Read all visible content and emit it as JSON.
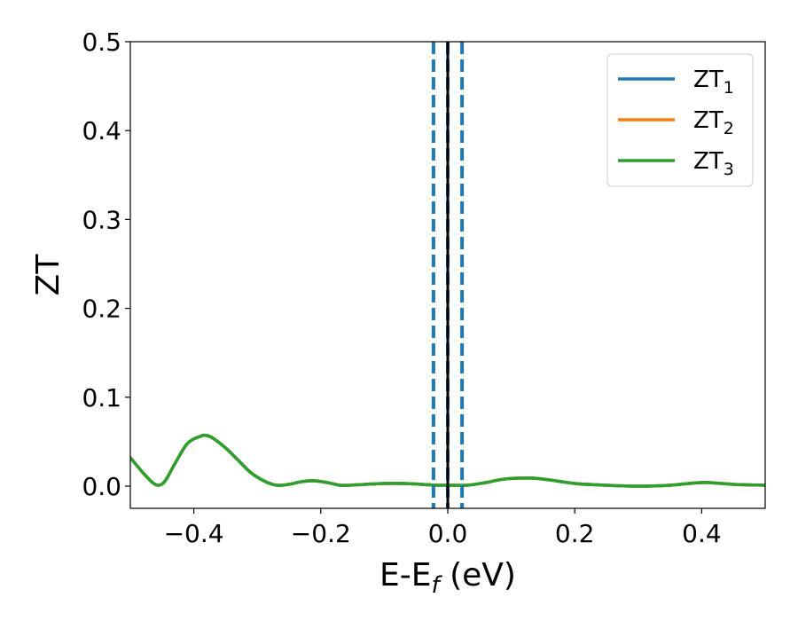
{
  "chart_data": {
    "type": "line",
    "xlabel": "E-E",
    "xlabel_sub": "f",
    "xlabel_unit": " (eV)",
    "ylabel": "ZT",
    "xlim": [
      -0.5,
      0.5
    ],
    "ylim": [
      -0.025,
      0.5
    ],
    "x_ticks": [
      -0.4,
      -0.2,
      0.0,
      0.2,
      0.4
    ],
    "x_tick_labels": [
      "−0.4",
      "−0.2",
      "0.0",
      "0.2",
      "0.4"
    ],
    "y_ticks": [
      0.0,
      0.1,
      0.2,
      0.3,
      0.4,
      0.5
    ],
    "y_tick_labels": [
      "0.0",
      "0.1",
      "0.2",
      "0.3",
      "0.4",
      "0.5"
    ],
    "grid": false,
    "legend_position": "top-right",
    "series": [
      {
        "name": "ZT",
        "sub": "1",
        "color": "#1f77b4",
        "x": [
          -0.5,
          -0.48,
          -0.465,
          -0.455,
          -0.445,
          -0.43,
          -0.41,
          -0.39,
          -0.38,
          -0.37,
          -0.35,
          -0.33,
          -0.31,
          -0.29,
          -0.27,
          -0.25,
          -0.23,
          -0.21,
          -0.19,
          -0.17,
          -0.155,
          -0.13,
          -0.1,
          -0.07,
          -0.04,
          -0.02,
          0.0,
          0.03,
          0.06,
          0.09,
          0.13,
          0.16,
          0.2,
          0.25,
          0.3,
          0.35,
          0.38,
          0.41,
          0.45,
          0.5
        ],
        "y": [
          0.032,
          0.015,
          0.004,
          0.001,
          0.006,
          0.025,
          0.048,
          0.056,
          0.057,
          0.054,
          0.043,
          0.029,
          0.015,
          0.006,
          0.001,
          0.002,
          0.005,
          0.006,
          0.004,
          0.001,
          0.001,
          0.002,
          0.003,
          0.003,
          0.002,
          0.001,
          0.001,
          0.001,
          0.004,
          0.008,
          0.009,
          0.007,
          0.003,
          0.001,
          0.0,
          0.001,
          0.003,
          0.004,
          0.002,
          0.001
        ]
      },
      {
        "name": "ZT",
        "sub": "2",
        "color": "#ff7f0e",
        "x": [
          -0.5,
          -0.48,
          -0.465,
          -0.455,
          -0.445,
          -0.43,
          -0.41,
          -0.39,
          -0.38,
          -0.37,
          -0.35,
          -0.33,
          -0.31,
          -0.29,
          -0.27,
          -0.25,
          -0.23,
          -0.21,
          -0.19,
          -0.17,
          -0.155,
          -0.13,
          -0.1,
          -0.07,
          -0.04,
          -0.02,
          0.0,
          0.03,
          0.06,
          0.09,
          0.13,
          0.16,
          0.2,
          0.25,
          0.3,
          0.35,
          0.38,
          0.41,
          0.45,
          0.5
        ],
        "y": [
          0.032,
          0.015,
          0.004,
          0.001,
          0.006,
          0.025,
          0.048,
          0.056,
          0.057,
          0.054,
          0.043,
          0.029,
          0.015,
          0.006,
          0.001,
          0.002,
          0.005,
          0.006,
          0.004,
          0.001,
          0.001,
          0.002,
          0.003,
          0.003,
          0.002,
          0.001,
          0.001,
          0.001,
          0.004,
          0.008,
          0.009,
          0.007,
          0.003,
          0.001,
          0.0,
          0.001,
          0.003,
          0.004,
          0.002,
          0.001
        ]
      },
      {
        "name": "ZT",
        "sub": "3",
        "color": "#2ca02c",
        "x": [
          -0.5,
          -0.48,
          -0.465,
          -0.455,
          -0.445,
          -0.43,
          -0.41,
          -0.39,
          -0.38,
          -0.37,
          -0.35,
          -0.33,
          -0.31,
          -0.29,
          -0.27,
          -0.25,
          -0.23,
          -0.21,
          -0.19,
          -0.17,
          -0.155,
          -0.13,
          -0.1,
          -0.07,
          -0.04,
          -0.02,
          0.0,
          0.03,
          0.06,
          0.09,
          0.13,
          0.16,
          0.2,
          0.25,
          0.3,
          0.35,
          0.38,
          0.41,
          0.45,
          0.5
        ],
        "y": [
          0.032,
          0.015,
          0.004,
          0.001,
          0.006,
          0.025,
          0.048,
          0.056,
          0.057,
          0.054,
          0.043,
          0.029,
          0.015,
          0.006,
          0.001,
          0.002,
          0.005,
          0.006,
          0.004,
          0.001,
          0.001,
          0.002,
          0.003,
          0.003,
          0.002,
          0.001,
          0.001,
          0.001,
          0.004,
          0.008,
          0.009,
          0.007,
          0.003,
          0.001,
          0.0,
          0.001,
          0.003,
          0.004,
          0.002,
          0.001
        ]
      }
    ],
    "vertical_lines": [
      {
        "x": -0.0225,
        "color": "#1f77b4",
        "style": "dashed"
      },
      {
        "x": 0.0,
        "color": "#1f77b4",
        "style": "dashed"
      },
      {
        "x": 0.0225,
        "color": "#1f77b4",
        "style": "dashed"
      },
      {
        "x": 0.0,
        "color": "#000000",
        "style": "solid"
      }
    ]
  }
}
